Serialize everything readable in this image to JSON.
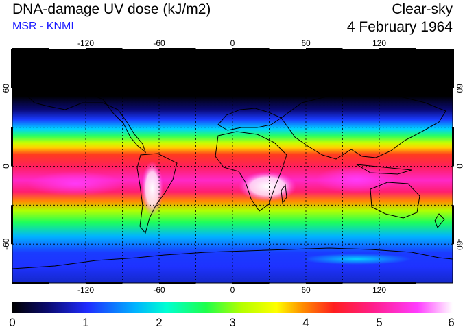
{
  "header": {
    "title": "DNA-damage UV dose (kJ/m2)",
    "source": "MSR - KNMI",
    "mode": "Clear-sky",
    "date": "4 February 1964"
  },
  "map": {
    "lon_ticks": [
      "-120",
      "-60",
      "0",
      "60",
      "120"
    ],
    "lat_ticks": [
      "60",
      "0",
      "-60"
    ],
    "lon_range": [
      -180,
      180
    ],
    "lat_range": [
      -90,
      90
    ],
    "grid": "dashed every 30 degrees"
  },
  "colorbar": {
    "labels": [
      "0",
      "1",
      "2",
      "3",
      "4",
      "5",
      "6"
    ],
    "range": [
      0,
      6
    ],
    "colors": [
      "#000000",
      "#0a0a6e",
      "#1f2cff",
      "#00b4ff",
      "#00ffd2",
      "#1eff4b",
      "#b4ff00",
      "#ffff00",
      "#ff8c00",
      "#ff1e1e",
      "#ff1e8c",
      "#ff3cff",
      "#ffffff"
    ]
  }
}
